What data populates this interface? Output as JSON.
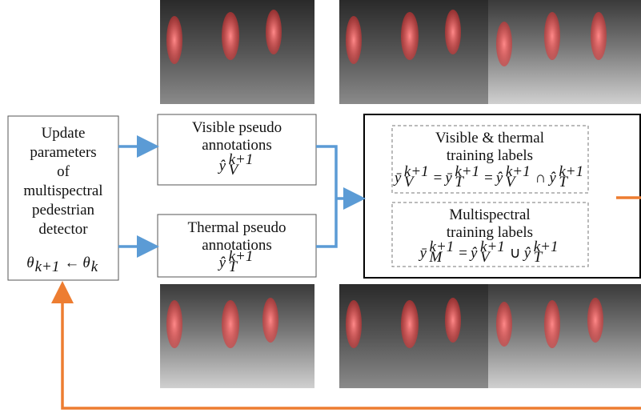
{
  "left_box": {
    "lines": [
      "Update",
      "parameters",
      "of",
      "multispectral",
      "pedestrian",
      "detector"
    ],
    "formula": [
      {
        "base": "θ",
        "sub": "k+1"
      },
      {
        "base": "←"
      },
      {
        "base": "θ",
        "sub": "k"
      }
    ]
  },
  "visible_box": {
    "lines": [
      "Visible pseudo",
      "annotations"
    ],
    "formula": [
      {
        "base": "ŷ",
        "sub": "V",
        "sup": "k+1"
      }
    ]
  },
  "thermal_box": {
    "lines": [
      "Thermal pseudo",
      "annotations"
    ],
    "formula": [
      {
        "base": "ŷ",
        "sub": "T",
        "sup": "k+1"
      }
    ]
  },
  "vt_labels": {
    "lines": [
      "Visible & thermal",
      "training labels"
    ],
    "formula": [
      {
        "base": "ȳ",
        "sub": "V",
        "sup": "k+1"
      },
      {
        "base": "="
      },
      {
        "base": "ȳ",
        "sub": "T",
        "sup": "k+1"
      },
      {
        "base": "="
      },
      {
        "base": "ŷ",
        "sub": "V",
        "sup": "k+1"
      },
      {
        "base": "∩"
      },
      {
        "base": "ŷ",
        "sub": "T",
        "sup": "k+1"
      }
    ]
  },
  "ms_labels": {
    "lines": [
      "Multispectral",
      "training labels"
    ],
    "formula": [
      {
        "base": "ȳ",
        "sub": "M",
        "sup": "k+1"
      },
      {
        "base": "="
      },
      {
        "base": "ŷ",
        "sub": "V",
        "sup": "k+1"
      },
      {
        "base": "∪"
      },
      {
        "base": "ŷ",
        "sub": "T",
        "sup": "k+1"
      }
    ]
  }
}
